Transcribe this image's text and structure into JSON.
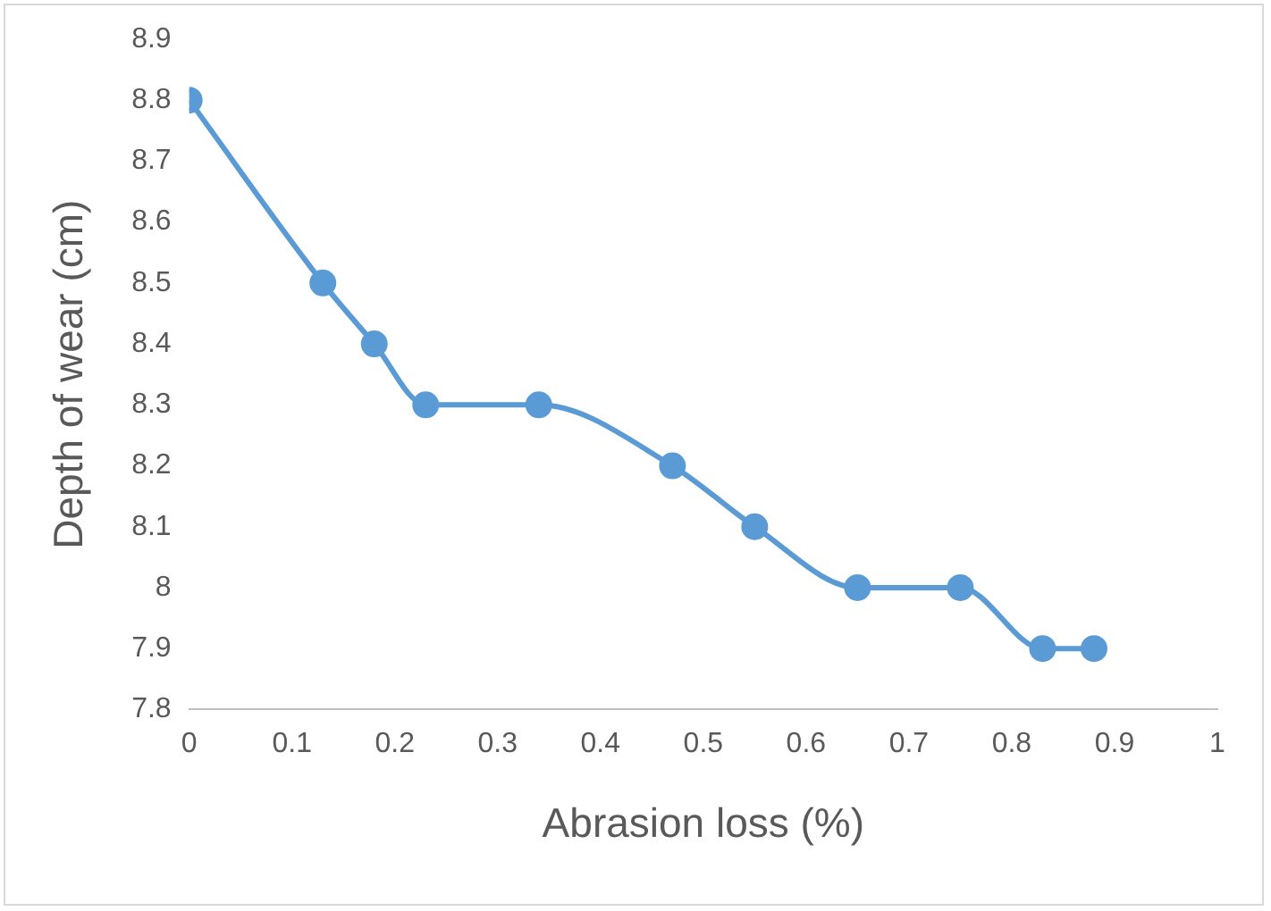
{
  "chart_data": {
    "type": "line",
    "xlabel": "Abrasion loss (%)",
    "ylabel": "Depth of wear (cm)",
    "x": [
      0,
      0.13,
      0.18,
      0.23,
      0.34,
      0.47,
      0.55,
      0.65,
      0.75,
      0.83,
      0.88
    ],
    "series": [
      {
        "color": "#5b9bd5",
        "values": [
          8.8,
          8.5,
          8.4,
          8.3,
          8.3,
          8.2,
          8.1,
          8.0,
          8.0,
          7.9,
          7.9
        ]
      }
    ],
    "xlim": [
      0,
      1
    ],
    "xticks": [
      0,
      0.1,
      0.2,
      0.3,
      0.4,
      0.5,
      0.6,
      0.7,
      0.8,
      0.9,
      1
    ],
    "ylim": [
      7.8,
      8.9
    ],
    "yticks": [
      7.8,
      7.9,
      8,
      8.1,
      8.2,
      8.3,
      8.4,
      8.5,
      8.6,
      8.7,
      8.8,
      8.9
    ],
    "grid": false,
    "legend": false,
    "marker": "circle",
    "line_style": "solid"
  }
}
